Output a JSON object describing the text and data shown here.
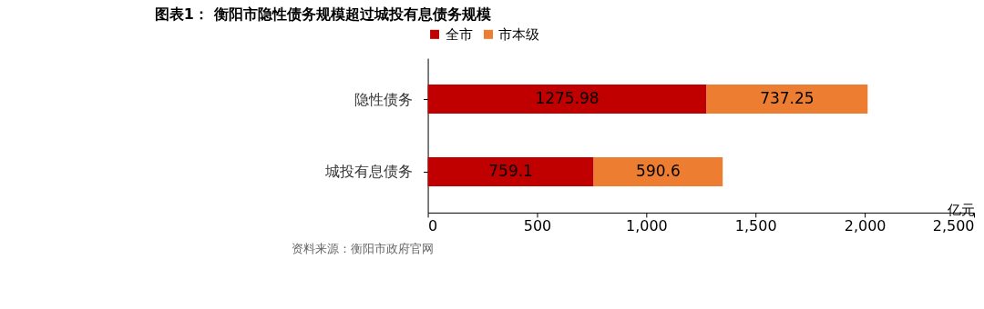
{
  "chart_data": {
    "type": "bar",
    "orientation": "horizontal",
    "stacked": true,
    "title": "图表1： 衡阳市隐性债务规模超过城投有息债务规模",
    "categories": [
      "隐性债务",
      "城投有息债务"
    ],
    "series": [
      {
        "name": "全市",
        "color": "#c00000",
        "values": [
          1275.98,
          759.1
        ]
      },
      {
        "name": "市本级",
        "color": "#ed7d31",
        "values": [
          737.25,
          590.6
        ]
      }
    ],
    "xlabel": "亿元",
    "xlim": [
      0,
      2500
    ],
    "xticks": [
      0,
      500,
      {
        "value": 1000,
        "label": "1,000"
      },
      {
        "value": 1500,
        "label": "1,500"
      },
      {
        "value": 2000,
        "label": "2,000"
      },
      {
        "value": 2500,
        "label": "2,500"
      }
    ],
    "data_labels": true,
    "legend": "top",
    "grid": false,
    "annotations": [
      "资料来源：衡阳市政府官网"
    ]
  }
}
